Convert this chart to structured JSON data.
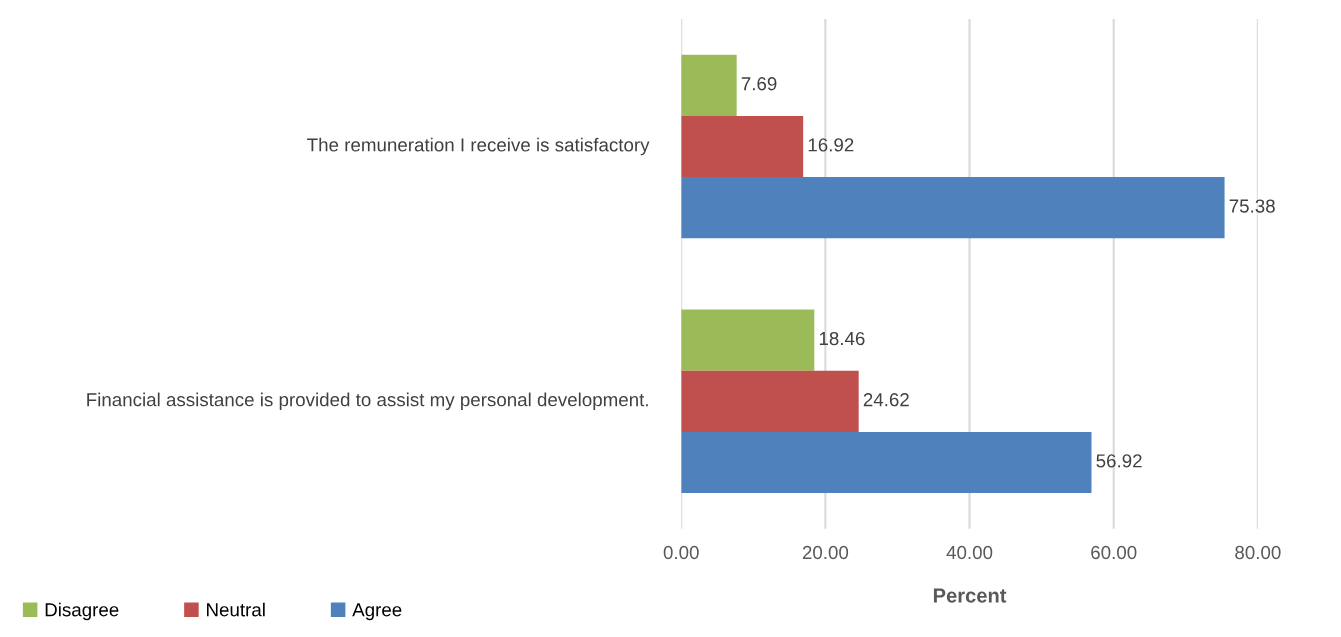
{
  "chart_data": {
    "type": "bar",
    "orientation": "horizontal",
    "categories": [
      "The remuneration I receive is satisfactory",
      "Financial assistance is provided to assist my personal development."
    ],
    "series": [
      {
        "name": "Disagree",
        "color": "#9bbb59",
        "values": [
          7.69,
          18.46
        ]
      },
      {
        "name": "Neutral",
        "color": "#c0504d",
        "values": [
          16.92,
          24.62
        ]
      },
      {
        "name": "Agree",
        "color": "#4f81bd",
        "values": [
          75.38,
          56.92
        ]
      }
    ],
    "xlim": [
      0,
      80
    ],
    "xticks": [
      {
        "value": 0,
        "label": "0.00"
      },
      {
        "value": 20,
        "label": "20.00"
      },
      {
        "value": 40,
        "label": "40.00"
      },
      {
        "value": 60,
        "label": "60.00"
      },
      {
        "value": 80,
        "label": "80.00"
      }
    ],
    "xlabel": "Percent",
    "grid": "x",
    "data_labels": true,
    "legend": "bottom left"
  }
}
